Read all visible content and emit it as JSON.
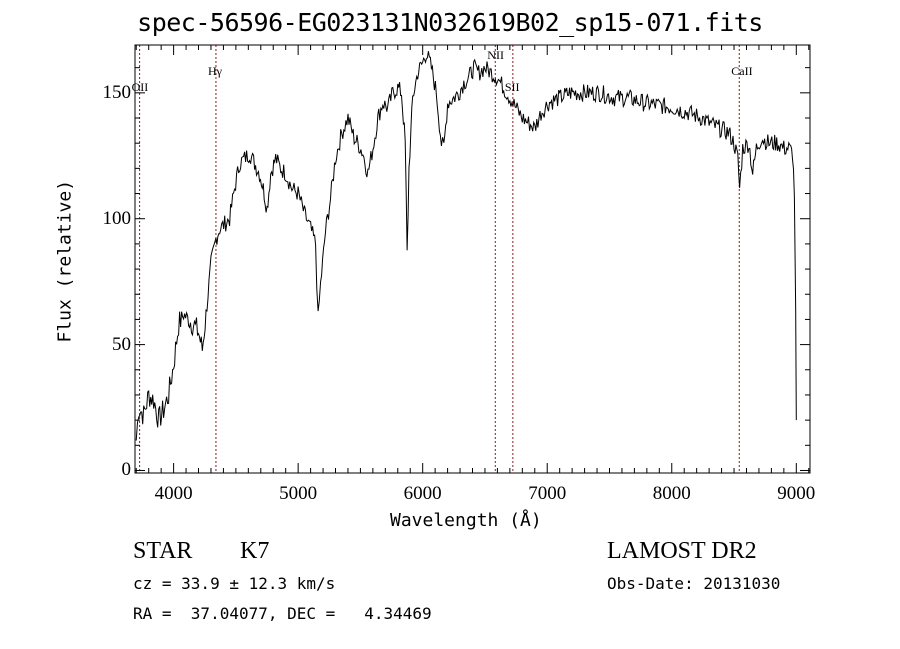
{
  "chart_data": {
    "type": "line",
    "title": "spec-56596-EG023131N032619B02_sp15-071.fits",
    "xlabel": "Wavelength (Å)",
    "ylabel": "Flux (relative)",
    "xlim": [
      3690,
      9110
    ],
    "ylim": [
      -1,
      169
    ],
    "xticks": [
      4000,
      5000,
      6000,
      7000,
      8000,
      9000
    ],
    "yticks": [
      0,
      50,
      100,
      150
    ],
    "grid": false,
    "line_color": "#000000",
    "marker_color": "#8b1a1a",
    "lines": [
      {
        "label": "OII",
        "wavelength": 3727
      },
      {
        "label": "Hγ",
        "wavelength": 4340
      },
      {
        "label": "NII",
        "wavelength": 6583
      },
      {
        "label": "SII",
        "wavelength": 6724
      },
      {
        "label": "CaII",
        "wavelength": 8542
      }
    ],
    "series": [
      {
        "name": "flux",
        "x": [
          3700,
          3720,
          3760,
          3800,
          3840,
          3880,
          3920,
          3960,
          4000,
          4040,
          4080,
          4120,
          4160,
          4200,
          4230,
          4260,
          4300,
          4340,
          4370,
          4410,
          4450,
          4490,
          4530,
          4570,
          4610,
          4650,
          4690,
          4720,
          4750,
          4780,
          4820,
          4860,
          4900,
          4950,
          5000,
          5050,
          5100,
          5140,
          5160,
          5180,
          5220,
          5260,
          5300,
          5350,
          5400,
          5450,
          5480,
          5520,
          5560,
          5600,
          5640,
          5680,
          5720,
          5760,
          5800,
          5830,
          5860,
          5875,
          5890,
          5920,
          5960,
          6000,
          6030,
          6070,
          6110,
          6150,
          6170,
          6200,
          6250,
          6290,
          6330,
          6370,
          6410,
          6450,
          6500,
          6550,
          6600,
          6650,
          6700,
          6750,
          6800,
          6850,
          6900,
          6950,
          7010,
          7100,
          7180,
          7300,
          7420,
          7540,
          7650,
          7780,
          7900,
          8020,
          8140,
          8240,
          8300,
          8380,
          8460,
          8500,
          8530,
          8545,
          8570,
          8620,
          8650,
          8680,
          8720,
          8780,
          8850,
          8900,
          8940,
          8970,
          8985,
          8995,
          9000
        ],
        "y": [
          12,
          25,
          22,
          30,
          28,
          20,
          24,
          30,
          42,
          58,
          62,
          60,
          58,
          55,
          48,
          62,
          82,
          92,
          96,
          98,
          100,
          112,
          122,
          124,
          126,
          122,
          118,
          112,
          104,
          118,
          124,
          120,
          118,
          112,
          110,
          102,
          96,
          90,
          60,
          74,
          95,
          108,
          124,
          134,
          140,
          132,
          130,
          126,
          118,
          128,
          140,
          146,
          144,
          150,
          152,
          150,
          130,
          86,
          120,
          148,
          158,
          162,
          166,
          160,
          150,
          130,
          128,
          146,
          148,
          150,
          154,
          156,
          160,
          158,
          160,
          158,
          156,
          152,
          148,
          144,
          140,
          138,
          136,
          142,
          146,
          148,
          150,
          150,
          150,
          148,
          148,
          146,
          145,
          144,
          142,
          140,
          138,
          136,
          134,
          130,
          124,
          112,
          128,
          130,
          118,
          128,
          132,
          130,
          130,
          128,
          128,
          126,
          110,
          60,
          20
        ]
      }
    ]
  },
  "annotations": {
    "class_label": "STAR",
    "subclass": "K7",
    "survey": "LAMOST DR2",
    "cz_line": "cz = 33.9 ± 12.3 km/s",
    "obs_date": "Obs-Date: 20131030",
    "coords": "RA =  37.04077, DEC =   4.34469"
  }
}
